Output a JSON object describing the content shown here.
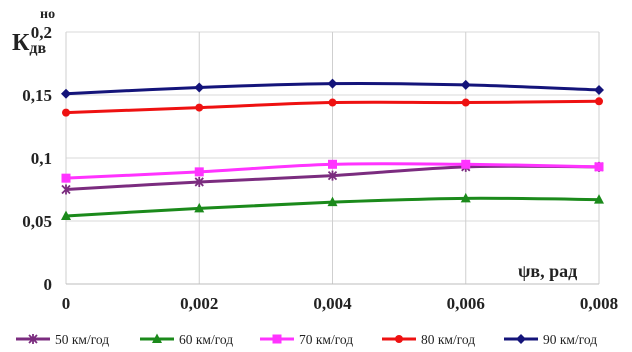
{
  "chart_data": {
    "type": "line",
    "title": "",
    "ylabel_main": "К",
    "ylabel_sub": "дв",
    "ylabel_sup": "но",
    "xlabel": "ψв, рад",
    "x": [
      0,
      0.002,
      0.004,
      0.006,
      0.008
    ],
    "x_tick_labels": [
      "0",
      "0,002",
      "0,004",
      "0,006",
      "0,008"
    ],
    "y_ticks": [
      0,
      0.05,
      0.1,
      0.15,
      0.2
    ],
    "y_tick_labels": [
      "0",
      "0,05",
      "0,1",
      "0,15",
      "0,2"
    ],
    "xlim": [
      0,
      0.008
    ],
    "ylim": [
      0,
      0.2
    ],
    "grid": "vertical",
    "legend_position": "bottom",
    "series": [
      {
        "name": "50 км/год",
        "color": "#7b2c7f",
        "marker": "star",
        "values": [
          0.075,
          0.081,
          0.086,
          0.093,
          0.093
        ]
      },
      {
        "name": "60 км/год",
        "color": "#1b8a1b",
        "marker": "triangle",
        "values": [
          0.054,
          0.06,
          0.065,
          0.068,
          0.067
        ]
      },
      {
        "name": "70 км/год",
        "color": "#ff33ff",
        "marker": "square",
        "values": [
          0.084,
          0.089,
          0.095,
          0.095,
          0.093
        ]
      },
      {
        "name": "80 км/год",
        "color": "#ee1111",
        "marker": "circle",
        "values": [
          0.136,
          0.14,
          0.144,
          0.144,
          0.145
        ]
      },
      {
        "name": "90 км/год",
        "color": "#14147a",
        "marker": "diamond",
        "values": [
          0.151,
          0.156,
          0.159,
          0.158,
          0.154
        ]
      }
    ]
  }
}
